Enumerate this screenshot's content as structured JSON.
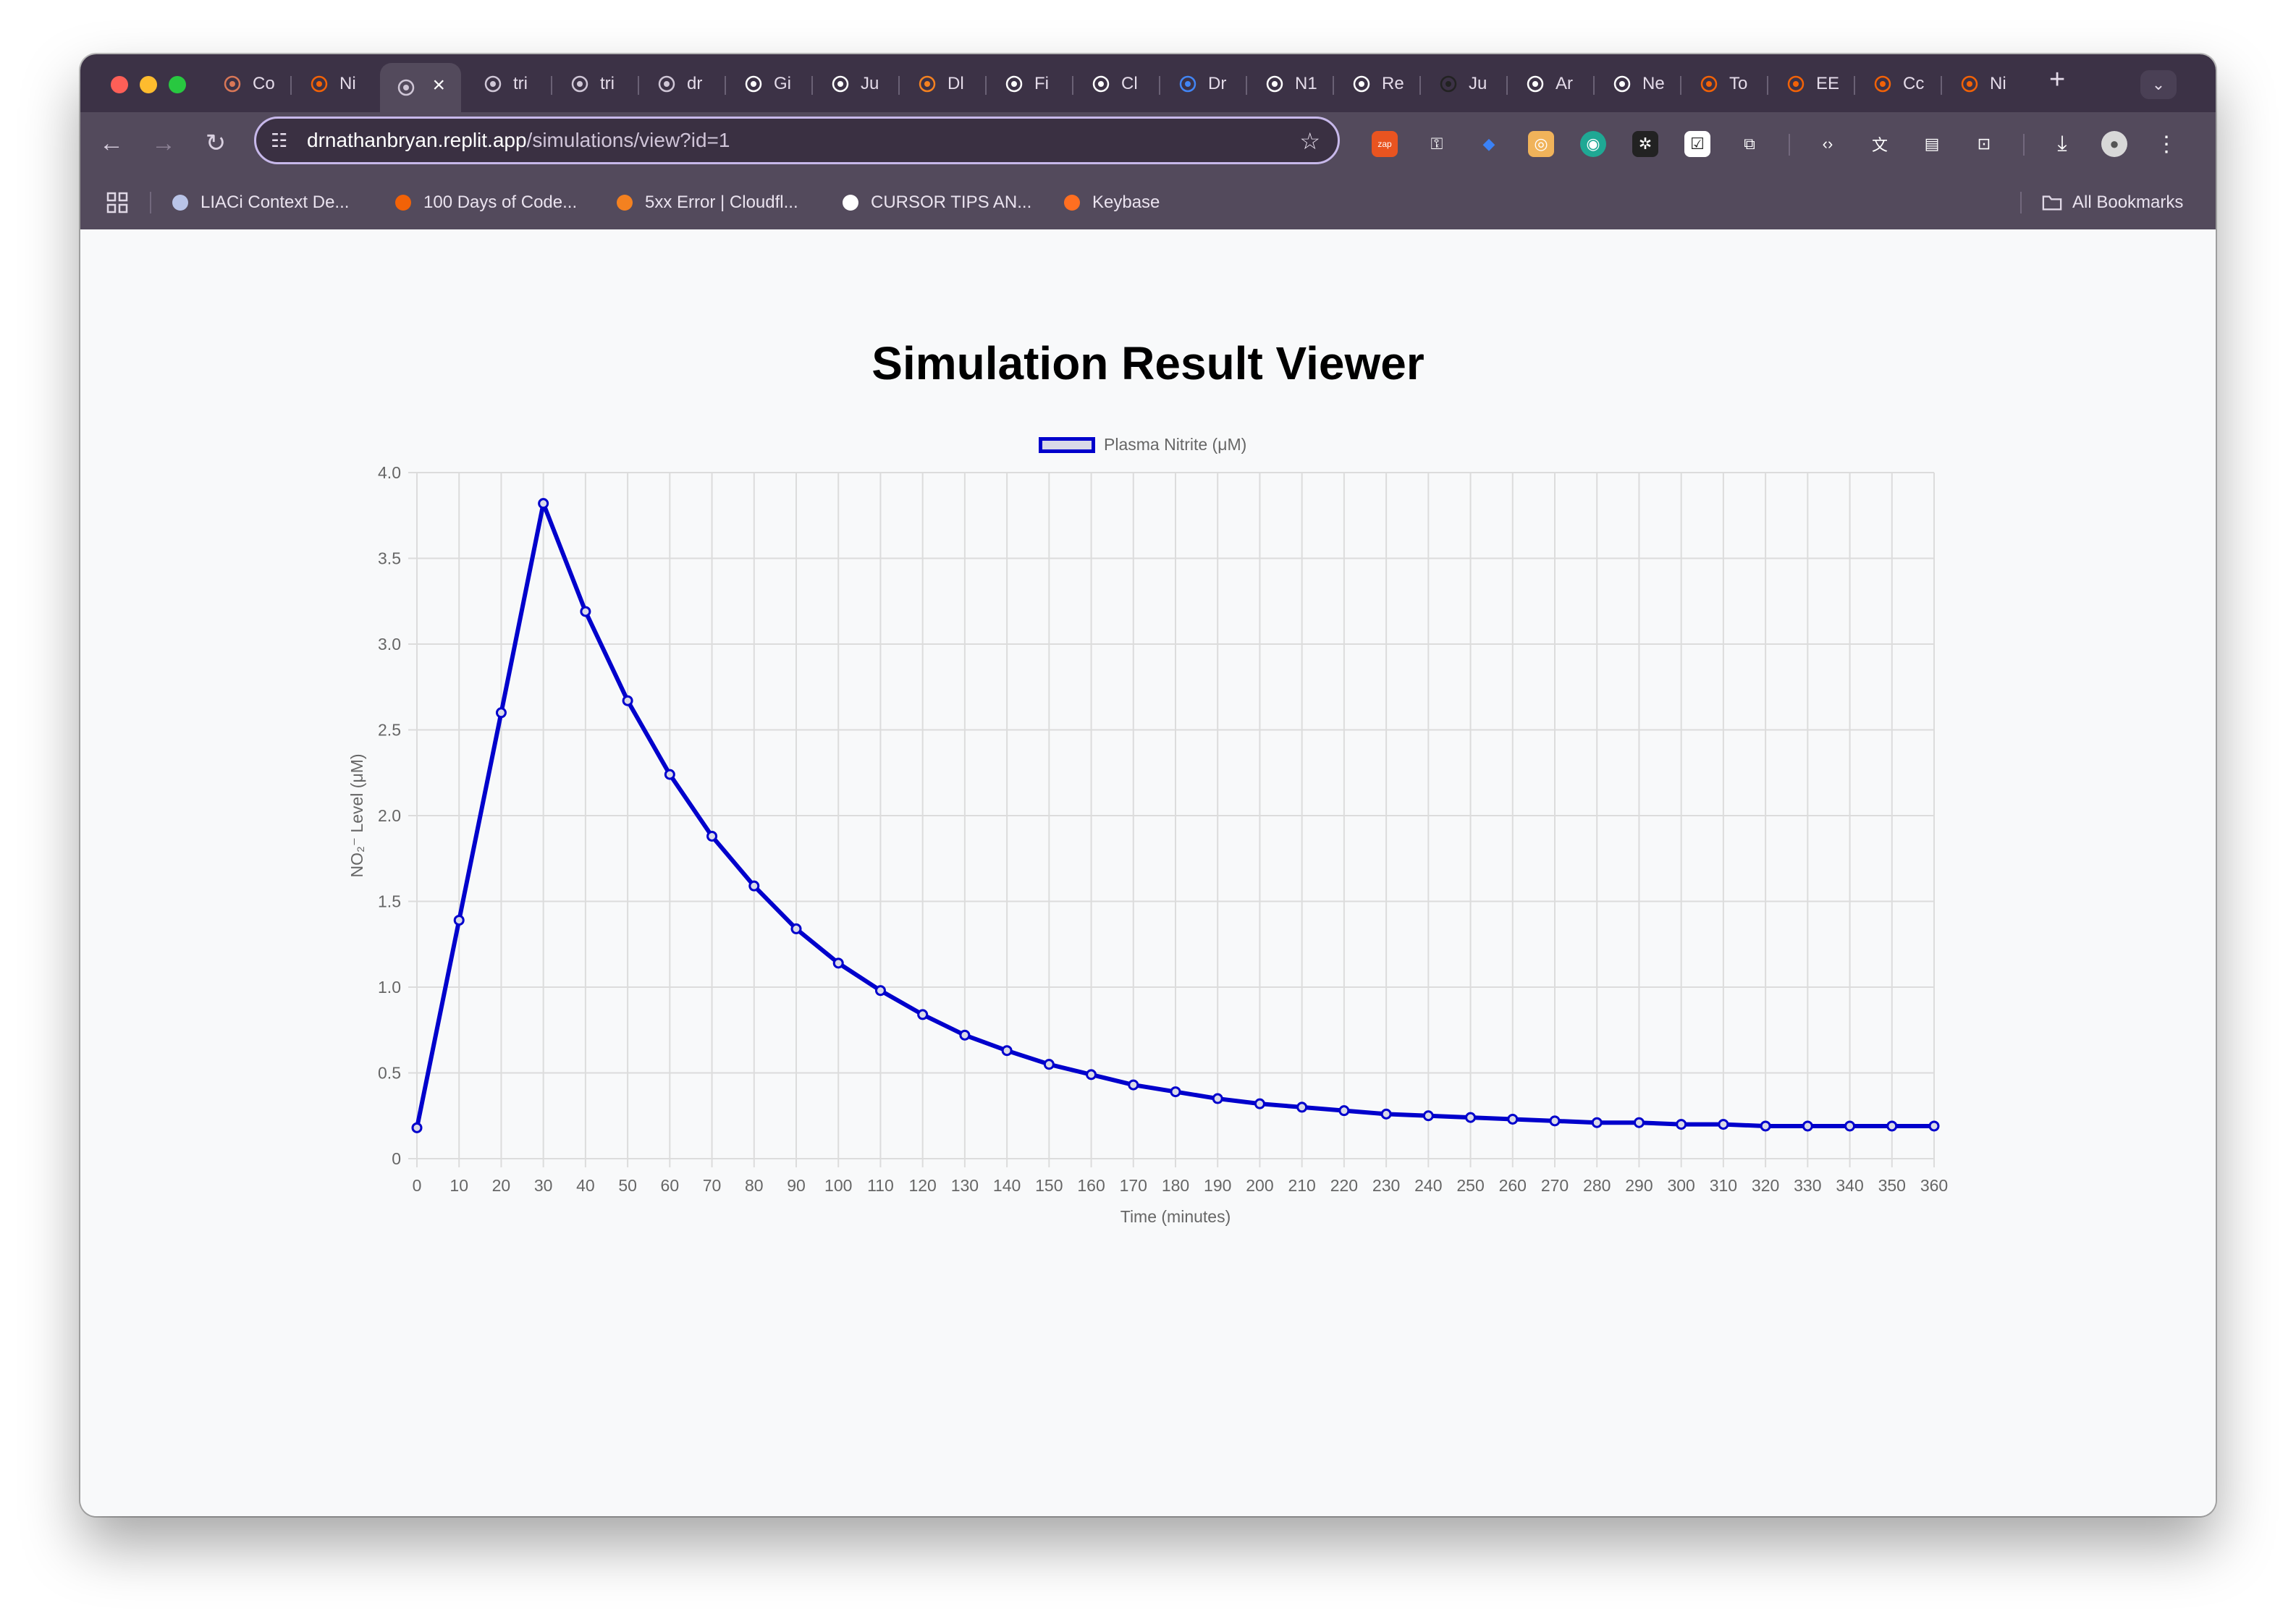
{
  "browser": {
    "tabs": [
      {
        "label": "Co",
        "icon": "claude-icon",
        "color": "#d97757"
      },
      {
        "label": "Ni",
        "icon": "replit-icon",
        "color": "#f26207"
      },
      {
        "label": "",
        "icon": "globe-icon",
        "color": "#cfc6d6",
        "active": true
      },
      {
        "label": "tri",
        "icon": "globe-icon",
        "color": "#cfc6d6"
      },
      {
        "label": "tri",
        "icon": "globe-icon",
        "color": "#cfc6d6"
      },
      {
        "label": "dr",
        "icon": "globe-icon",
        "color": "#cfc6d6"
      },
      {
        "label": "Gi",
        "icon": "github-icon",
        "color": "#ffffff"
      },
      {
        "label": "Ju",
        "icon": "page-icon",
        "color": "#ffffff"
      },
      {
        "label": "Dl",
        "icon": "cloudflare-icon",
        "color": "#f48120"
      },
      {
        "label": "Fi",
        "icon": "openai-icon",
        "color": "#ffffff"
      },
      {
        "label": "Cl",
        "icon": "openai-icon",
        "color": "#ffffff"
      },
      {
        "label": "Dr",
        "icon": "google-icon",
        "color": "#4285f4"
      },
      {
        "label": "N1",
        "icon": "openai-icon",
        "color": "#ffffff"
      },
      {
        "label": "Re",
        "icon": "openai-icon",
        "color": "#ffffff"
      },
      {
        "label": "Ju",
        "icon": "spinner-icon",
        "color": "#222222"
      },
      {
        "label": "Ar",
        "icon": "amazon-icon",
        "color": "#ffffff"
      },
      {
        "label": "Ne",
        "icon": "slash-circle-icon",
        "color": "#ffffff"
      },
      {
        "label": "To",
        "icon": "replit-icon",
        "color": "#f26207"
      },
      {
        "label": "EE",
        "icon": "replit-icon",
        "color": "#f26207"
      },
      {
        "label": "Cc",
        "icon": "replit-icon",
        "color": "#f26207"
      },
      {
        "label": "Ni",
        "icon": "replit-icon",
        "color": "#f26207"
      }
    ],
    "url_host": "drnathanbryan.replit.app",
    "url_path": "/simulations/view?id=1",
    "bookmarks": [
      {
        "label": "LIACi Context De...",
        "icon": "avatar-icon"
      },
      {
        "label": "100 Days of Code...",
        "icon": "replit-icon"
      },
      {
        "label": "5xx Error | Cloudfl...",
        "icon": "cloudflare-icon"
      },
      {
        "label": "CURSOR TIPS AN...",
        "icon": "document-icon"
      },
      {
        "label": "Keybase",
        "icon": "keybase-icon"
      }
    ],
    "all_bookmarks": "All Bookmarks"
  },
  "page": {
    "title": "Simulation Result Viewer"
  },
  "chart_data": {
    "type": "line",
    "xlabel": "Time (minutes)",
    "ylabel": "NO₂⁻ Level (μM)",
    "ylim": [
      0,
      4
    ],
    "yticks": [
      "0",
      "0.5",
      "1.0",
      "1.5",
      "2.0",
      "2.5",
      "3.0",
      "3.5",
      "4.0"
    ],
    "xlim": [
      0,
      360
    ],
    "grid": true,
    "legend_position": "top",
    "series": [
      {
        "name": "Plasma Nitrite (μM)",
        "color": "#0000cc",
        "x": [
          0,
          10,
          20,
          30,
          40,
          50,
          60,
          70,
          80,
          90,
          100,
          110,
          120,
          130,
          140,
          150,
          160,
          170,
          180,
          190,
          200,
          210,
          220,
          230,
          240,
          250,
          260,
          270,
          280,
          290,
          300,
          310,
          320,
          330,
          340,
          350,
          360
        ],
        "y": [
          0.18,
          1.39,
          2.6,
          3.82,
          3.19,
          2.67,
          2.24,
          1.88,
          1.59,
          1.34,
          1.14,
          0.98,
          0.84,
          0.72,
          0.63,
          0.55,
          0.49,
          0.43,
          0.39,
          0.35,
          0.32,
          0.3,
          0.28,
          0.26,
          0.25,
          0.24,
          0.23,
          0.22,
          0.21,
          0.21,
          0.2,
          0.2,
          0.19,
          0.19,
          0.19,
          0.19,
          0.19
        ]
      }
    ]
  }
}
